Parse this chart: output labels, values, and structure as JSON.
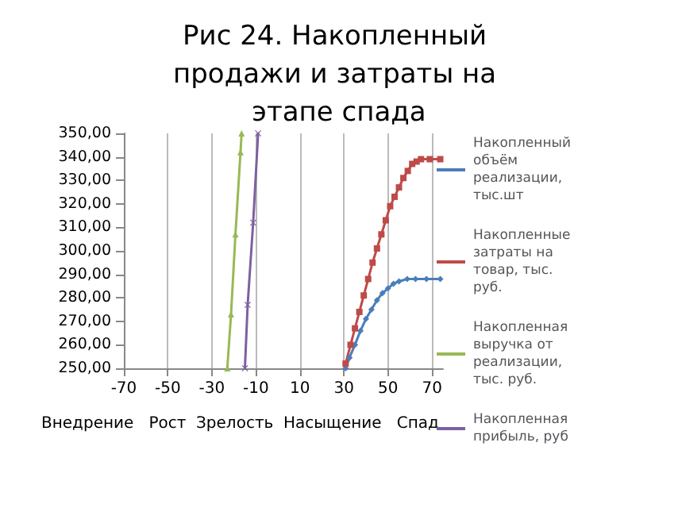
{
  "chart_data": {
    "type": "line",
    "title": "Рис 24. Накопленный продажи и затраты на этапе спада",
    "xlabel": "Внедрение   Рост  Зрелость  Насыщение   Спад",
    "xlim": [
      -70,
      75
    ],
    "xticks": [
      -70,
      -50,
      -30,
      -10,
      10,
      30,
      50,
      70
    ],
    "ylim": [
      250,
      350
    ],
    "yticks": [
      {
        "value": 250,
        "label": "250,00"
      },
      {
        "value": 260,
        "label": "260,00"
      },
      {
        "value": 270,
        "label": "270,00"
      },
      {
        "value": 280,
        "label": "280,00"
      },
      {
        "value": 290,
        "label": "290,00"
      },
      {
        "value": 300,
        "label": "300,00"
      },
      {
        "value": 310,
        "label": "310,00"
      },
      {
        "value": 320,
        "label": "320,00"
      },
      {
        "value": 330,
        "label": "330,00"
      },
      {
        "value": 340,
        "label": "340,00"
      },
      {
        "value": 350,
        "label": "350,00"
      }
    ],
    "grid": "x",
    "legend": "right",
    "series": [
      {
        "name": "Накопленный объём реализации, тыс.шт",
        "color": "#4a7ebb",
        "marker": "diamond",
        "x": [
          30.75,
          32.5,
          35,
          37.5,
          40,
          42.5,
          45,
          47.5,
          50,
          52.5,
          55,
          58.75,
          62.5,
          67.5,
          73.75
        ],
        "values": [
          250,
          254.5,
          260,
          266,
          271,
          275,
          279,
          282,
          284,
          286,
          287,
          288,
          288,
          288,
          288
        ]
      },
      {
        "name": "Накопленные затраты на товар, тыс. руб.",
        "color": "#be4b48",
        "marker": "square",
        "x": [
          30.75,
          33,
          35,
          37,
          39,
          41,
          43,
          45,
          47,
          49,
          51,
          53,
          55,
          57,
          59,
          61,
          63,
          65,
          69,
          73.75
        ],
        "values": [
          252,
          260,
          267,
          274,
          281,
          288,
          295,
          301,
          307,
          313,
          319,
          323,
          327,
          331,
          334,
          337,
          338,
          339,
          339,
          339
        ]
      },
      {
        "name": "Накопленная выручка от реализации, тыс. руб.",
        "color": "#98b954",
        "marker": "triangle",
        "x": [
          -23,
          -21.3,
          -19.3,
          -17,
          -16.5
        ],
        "values": [
          250,
          273,
          307,
          342,
          350
        ]
      },
      {
        "name": "Накопленная прибыль, руб",
        "color": "#7d60a0",
        "marker": "cross",
        "x": [
          -15,
          -13.75,
          -11.25,
          -9
        ],
        "values": [
          250,
          277,
          312,
          350
        ]
      }
    ]
  }
}
